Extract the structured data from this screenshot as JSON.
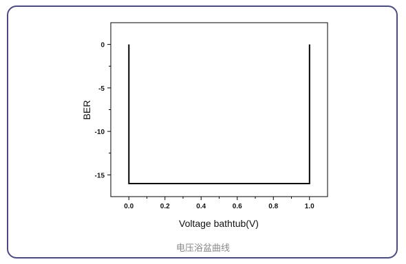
{
  "caption": "电压浴盆曲线",
  "colors": {
    "frame": "#4a4a80",
    "line": "#000000",
    "caption": "#888888"
  },
  "chart_data": {
    "type": "line",
    "title": "",
    "xlabel": "Voltage bathtub(V)",
    "ylabel": "BER",
    "xlim": [
      -0.1,
      1.1
    ],
    "ylim": [
      -17.5,
      2.5
    ],
    "xticks": [
      0.0,
      0.2,
      0.4,
      0.6,
      0.8,
      1.0
    ],
    "xtick_labels": [
      "0.0",
      "0.2",
      "0.4",
      "0.6",
      "0.8",
      "1.0"
    ],
    "yticks": [
      0,
      -5,
      -10,
      -15
    ],
    "ytick_labels": [
      "0",
      "-5",
      "-10",
      "-15"
    ],
    "grid": false,
    "series": [
      {
        "x": [
          0.0,
          0.0,
          1.0,
          1.0
        ],
        "y": [
          0,
          -16,
          -16,
          0
        ]
      }
    ]
  }
}
